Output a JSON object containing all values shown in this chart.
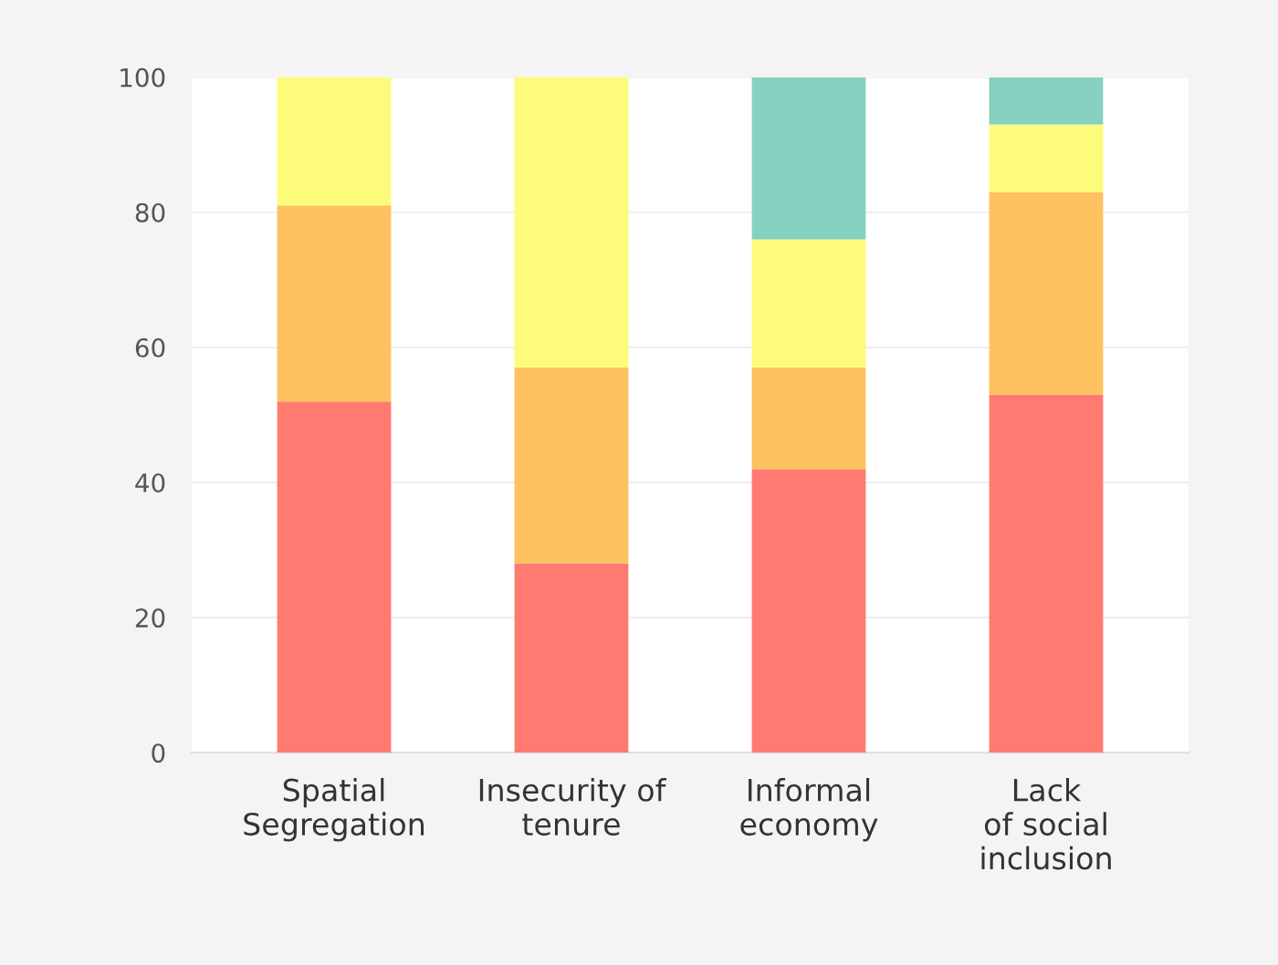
{
  "chart_data": {
    "type": "bar",
    "stacked": true,
    "categories": [
      "Spatial\nSegregation",
      "Insecurity of\ntenure",
      "Informal\neconomy",
      "Lack\nof social\ninclusion"
    ],
    "series": [
      {
        "color": "#ff7b72",
        "values": [
          52,
          28,
          42,
          53
        ]
      },
      {
        "color": "#fdc160",
        "values": [
          29,
          29,
          15,
          30
        ]
      },
      {
        "color": "#fdfb7a",
        "values": [
          19,
          43,
          19,
          10
        ]
      },
      {
        "color": "#86d1c0",
        "values": [
          0,
          0,
          24,
          7
        ]
      }
    ],
    "ylim": [
      0,
      100
    ],
    "yticks": [
      0,
      20,
      40,
      60,
      80,
      100
    ],
    "grid": "y",
    "legend": false
  }
}
